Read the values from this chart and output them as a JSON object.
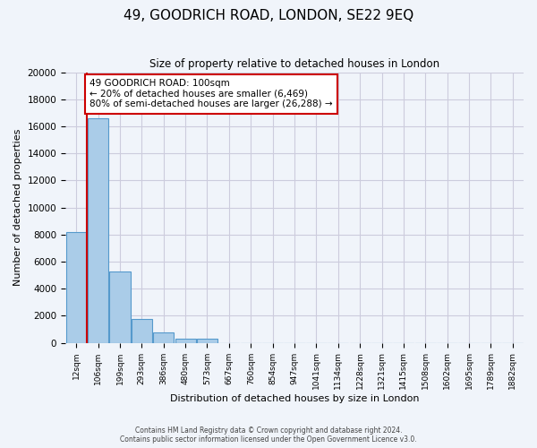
{
  "title": "49, GOODRICH ROAD, LONDON, SE22 9EQ",
  "subtitle": "Size of property relative to detached houses in London",
  "xlabel": "Distribution of detached houses by size in London",
  "ylabel": "Number of detached properties",
  "bin_labels": [
    "12sqm",
    "106sqm",
    "199sqm",
    "293sqm",
    "386sqm",
    "480sqm",
    "573sqm",
    "667sqm",
    "760sqm",
    "854sqm",
    "947sqm",
    "1041sqm",
    "1134sqm",
    "1228sqm",
    "1321sqm",
    "1415sqm",
    "1508sqm",
    "1602sqm",
    "1695sqm",
    "1789sqm",
    "1882sqm"
  ],
  "bar_heights": [
    8200,
    16600,
    5300,
    1750,
    800,
    300,
    300,
    0,
    0,
    0,
    0,
    0,
    0,
    0,
    0,
    0,
    0,
    0,
    0,
    0,
    0
  ],
  "bar_color": "#aacce8",
  "bar_edge_color": "#5599cc",
  "property_line_color": "#cc0000",
  "annotation_title": "49 GOODRICH ROAD: 100sqm",
  "annotation_line1": "← 20% of detached houses are smaller (6,469)",
  "annotation_line2": "80% of semi-detached houses are larger (26,288) →",
  "annotation_box_color": "#ffffff",
  "annotation_box_edge": "#cc0000",
  "ylim": [
    0,
    20000
  ],
  "yticks": [
    0,
    2000,
    4000,
    6000,
    8000,
    10000,
    12000,
    14000,
    16000,
    18000,
    20000
  ],
  "footer_line1": "Contains HM Land Registry data © Crown copyright and database right 2024.",
  "footer_line2": "Contains public sector information licensed under the Open Government Licence v3.0.",
  "bg_color": "#f0f4fa",
  "grid_color": "#ccccdd"
}
